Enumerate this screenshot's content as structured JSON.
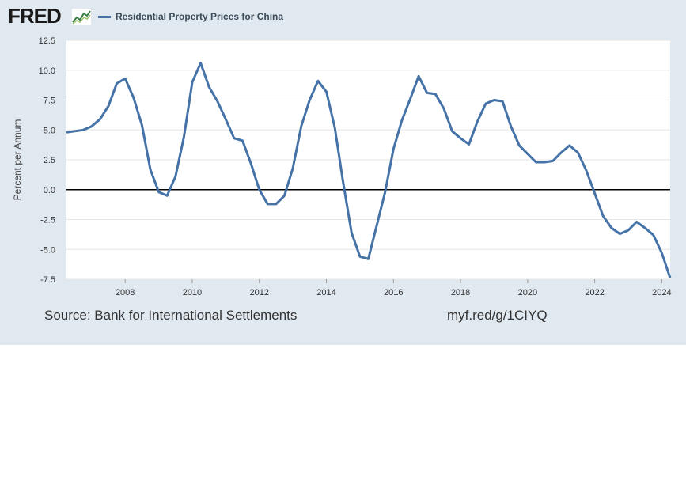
{
  "header": {
    "logo_text": "FRED",
    "logo_icon": "line-chart-icon",
    "legend_label": "Residential Property Prices for China",
    "series_color": "#4572a7"
  },
  "footer": {
    "source": "Source: Bank for International Settlements",
    "short_url": "myf.red/g/1CIYQ"
  },
  "chart_data": {
    "type": "line",
    "title": "",
    "xlabel": "",
    "ylabel": "Percent per Annum",
    "xlim": [
      2006.25,
      2024.25
    ],
    "ylim": [
      -7.5,
      12.5
    ],
    "yticks": [
      "12.5",
      "10.0",
      "7.5",
      "5.0",
      "2.5",
      "0.0",
      "-2.5",
      "-5.0",
      "-7.5"
    ],
    "ytick_values": [
      12.5,
      10.0,
      7.5,
      5.0,
      2.5,
      0.0,
      -2.5,
      -5.0,
      -7.5
    ],
    "xticks": [
      "2008",
      "2010",
      "2012",
      "2014",
      "2016",
      "2018",
      "2020",
      "2022",
      "2024"
    ],
    "xtick_values": [
      2008,
      2010,
      2012,
      2014,
      2016,
      2018,
      2020,
      2022,
      2024
    ],
    "grid": true,
    "zero_line": true,
    "series": [
      {
        "name": "Residential Property Prices for China",
        "x": [
          2006.25,
          2006.5,
          2006.75,
          2007.0,
          2007.25,
          2007.5,
          2007.75,
          2008.0,
          2008.25,
          2008.5,
          2008.75,
          2009.0,
          2009.25,
          2009.5,
          2009.75,
          2010.0,
          2010.25,
          2010.5,
          2010.75,
          2011.0,
          2011.25,
          2011.5,
          2011.75,
          2012.0,
          2012.25,
          2012.5,
          2012.75,
          2013.0,
          2013.25,
          2013.5,
          2013.75,
          2014.0,
          2014.25,
          2014.5,
          2014.75,
          2015.0,
          2015.25,
          2015.5,
          2015.75,
          2016.0,
          2016.25,
          2016.5,
          2016.75,
          2017.0,
          2017.25,
          2017.5,
          2017.75,
          2018.0,
          2018.25,
          2018.5,
          2018.75,
          2019.0,
          2019.25,
          2019.5,
          2019.75,
          2020.0,
          2020.25,
          2020.5,
          2020.75,
          2021.0,
          2021.25,
          2021.5,
          2021.75,
          2022.0,
          2022.25,
          2022.5,
          2022.75,
          2023.0,
          2023.25,
          2023.5,
          2023.75,
          2024.0,
          2024.25
        ],
        "values": [
          4.8,
          4.9,
          5.0,
          5.3,
          5.9,
          7.0,
          8.9,
          9.3,
          7.7,
          5.4,
          1.7,
          -0.2,
          -0.5,
          1.1,
          4.4,
          9.0,
          10.6,
          8.6,
          7.4,
          5.9,
          4.3,
          4.1,
          2.2,
          0.0,
          -1.2,
          -1.2,
          -0.5,
          1.8,
          5.3,
          7.5,
          9.1,
          8.2,
          5.2,
          0.6,
          -3.6,
          -5.6,
          -5.8,
          -3.0,
          -0.2,
          3.4,
          5.8,
          7.6,
          9.5,
          8.1,
          8.0,
          6.8,
          4.9,
          4.3,
          3.8,
          5.7,
          7.2,
          7.5,
          7.4,
          5.3,
          3.7,
          3.0,
          2.3,
          2.3,
          2.4,
          3.1,
          3.7,
          3.1,
          1.6,
          -0.3,
          -2.2,
          -3.2,
          -3.7,
          -3.4,
          -2.7,
          -3.2,
          -3.8,
          -5.3,
          -7.4
        ]
      }
    ]
  }
}
